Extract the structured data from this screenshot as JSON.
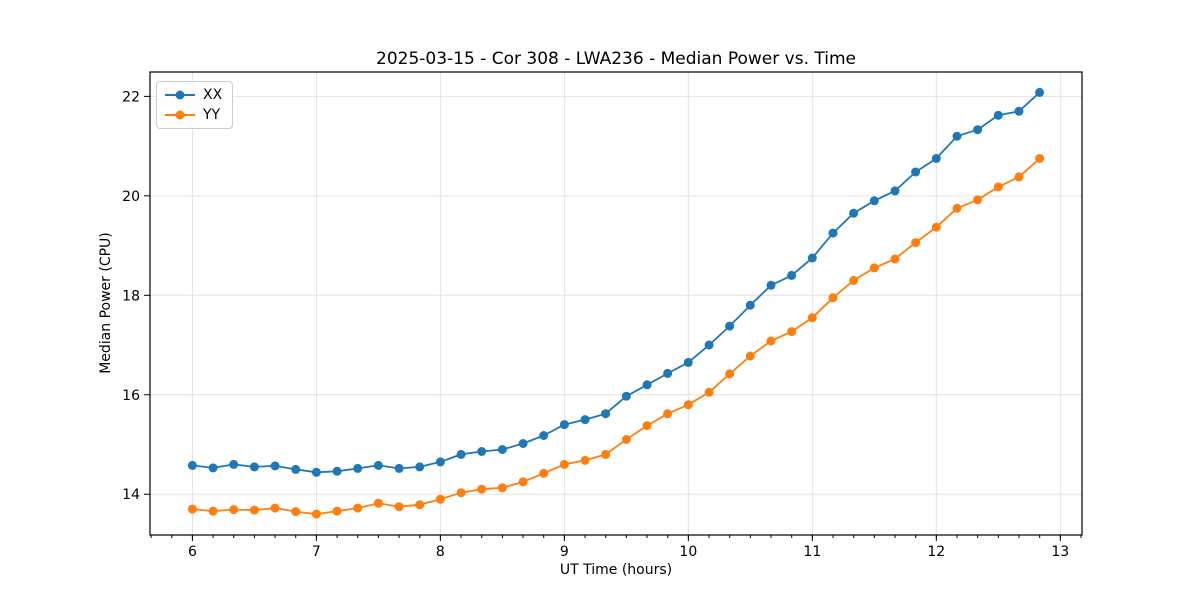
{
  "chart_data": {
    "type": "line",
    "title": "2025-03-15 - Cor 308 - LWA236 - Median Power vs. Time",
    "xlabel": "UT Time (hours)",
    "ylabel": "Median Power (CPU)",
    "xlim": [
      5.658,
      13.175
    ],
    "ylim": [
      13.18,
      22.49
    ],
    "x_ticks": [
      6,
      7,
      8,
      9,
      10,
      11,
      12,
      13
    ],
    "y_ticks": [
      14,
      16,
      18,
      20,
      22
    ],
    "x_minor_interval": 0.16667,
    "grid": true,
    "grid_color": "#e2e2e2",
    "axis_color": "#000000",
    "legend_position": "upper left",
    "x": [
      6.0,
      6.167,
      6.333,
      6.5,
      6.667,
      6.833,
      7.0,
      7.167,
      7.333,
      7.5,
      7.667,
      7.833,
      8.0,
      8.167,
      8.333,
      8.5,
      8.667,
      8.833,
      9.0,
      9.167,
      9.333,
      9.5,
      9.667,
      9.833,
      10.0,
      10.167,
      10.333,
      10.5,
      10.667,
      10.833,
      11.0,
      11.167,
      11.333,
      11.5,
      11.667,
      11.833,
      12.0,
      12.167,
      12.333,
      12.5,
      12.667,
      12.833
    ],
    "series": [
      {
        "name": "XX",
        "color": "#1f77b4",
        "marker": "circle",
        "values": [
          14.58,
          14.53,
          14.6,
          14.55,
          14.57,
          14.5,
          14.44,
          14.46,
          14.52,
          14.58,
          14.52,
          14.55,
          14.65,
          14.8,
          14.86,
          14.9,
          15.02,
          15.18,
          15.4,
          15.5,
          15.62,
          15.97,
          16.2,
          16.43,
          16.65,
          17.0,
          17.38,
          17.8,
          18.2,
          18.4,
          18.75,
          19.25,
          19.65,
          19.9,
          20.1,
          20.48,
          20.75,
          21.2,
          21.33,
          21.62,
          21.7,
          22.08
        ]
      },
      {
        "name": "YY",
        "color": "#ff7f0e",
        "marker": "circle",
        "values": [
          13.7,
          13.66,
          13.69,
          13.68,
          13.72,
          13.65,
          13.6,
          13.66,
          13.72,
          13.82,
          13.75,
          13.79,
          13.9,
          14.03,
          14.1,
          14.13,
          14.25,
          14.42,
          14.6,
          14.68,
          14.8,
          15.1,
          15.38,
          15.62,
          15.8,
          16.05,
          16.42,
          16.78,
          17.08,
          17.27,
          17.55,
          17.95,
          18.3,
          18.55,
          18.73,
          19.06,
          19.37,
          19.75,
          19.92,
          20.18,
          20.38,
          20.75
        ]
      }
    ]
  }
}
